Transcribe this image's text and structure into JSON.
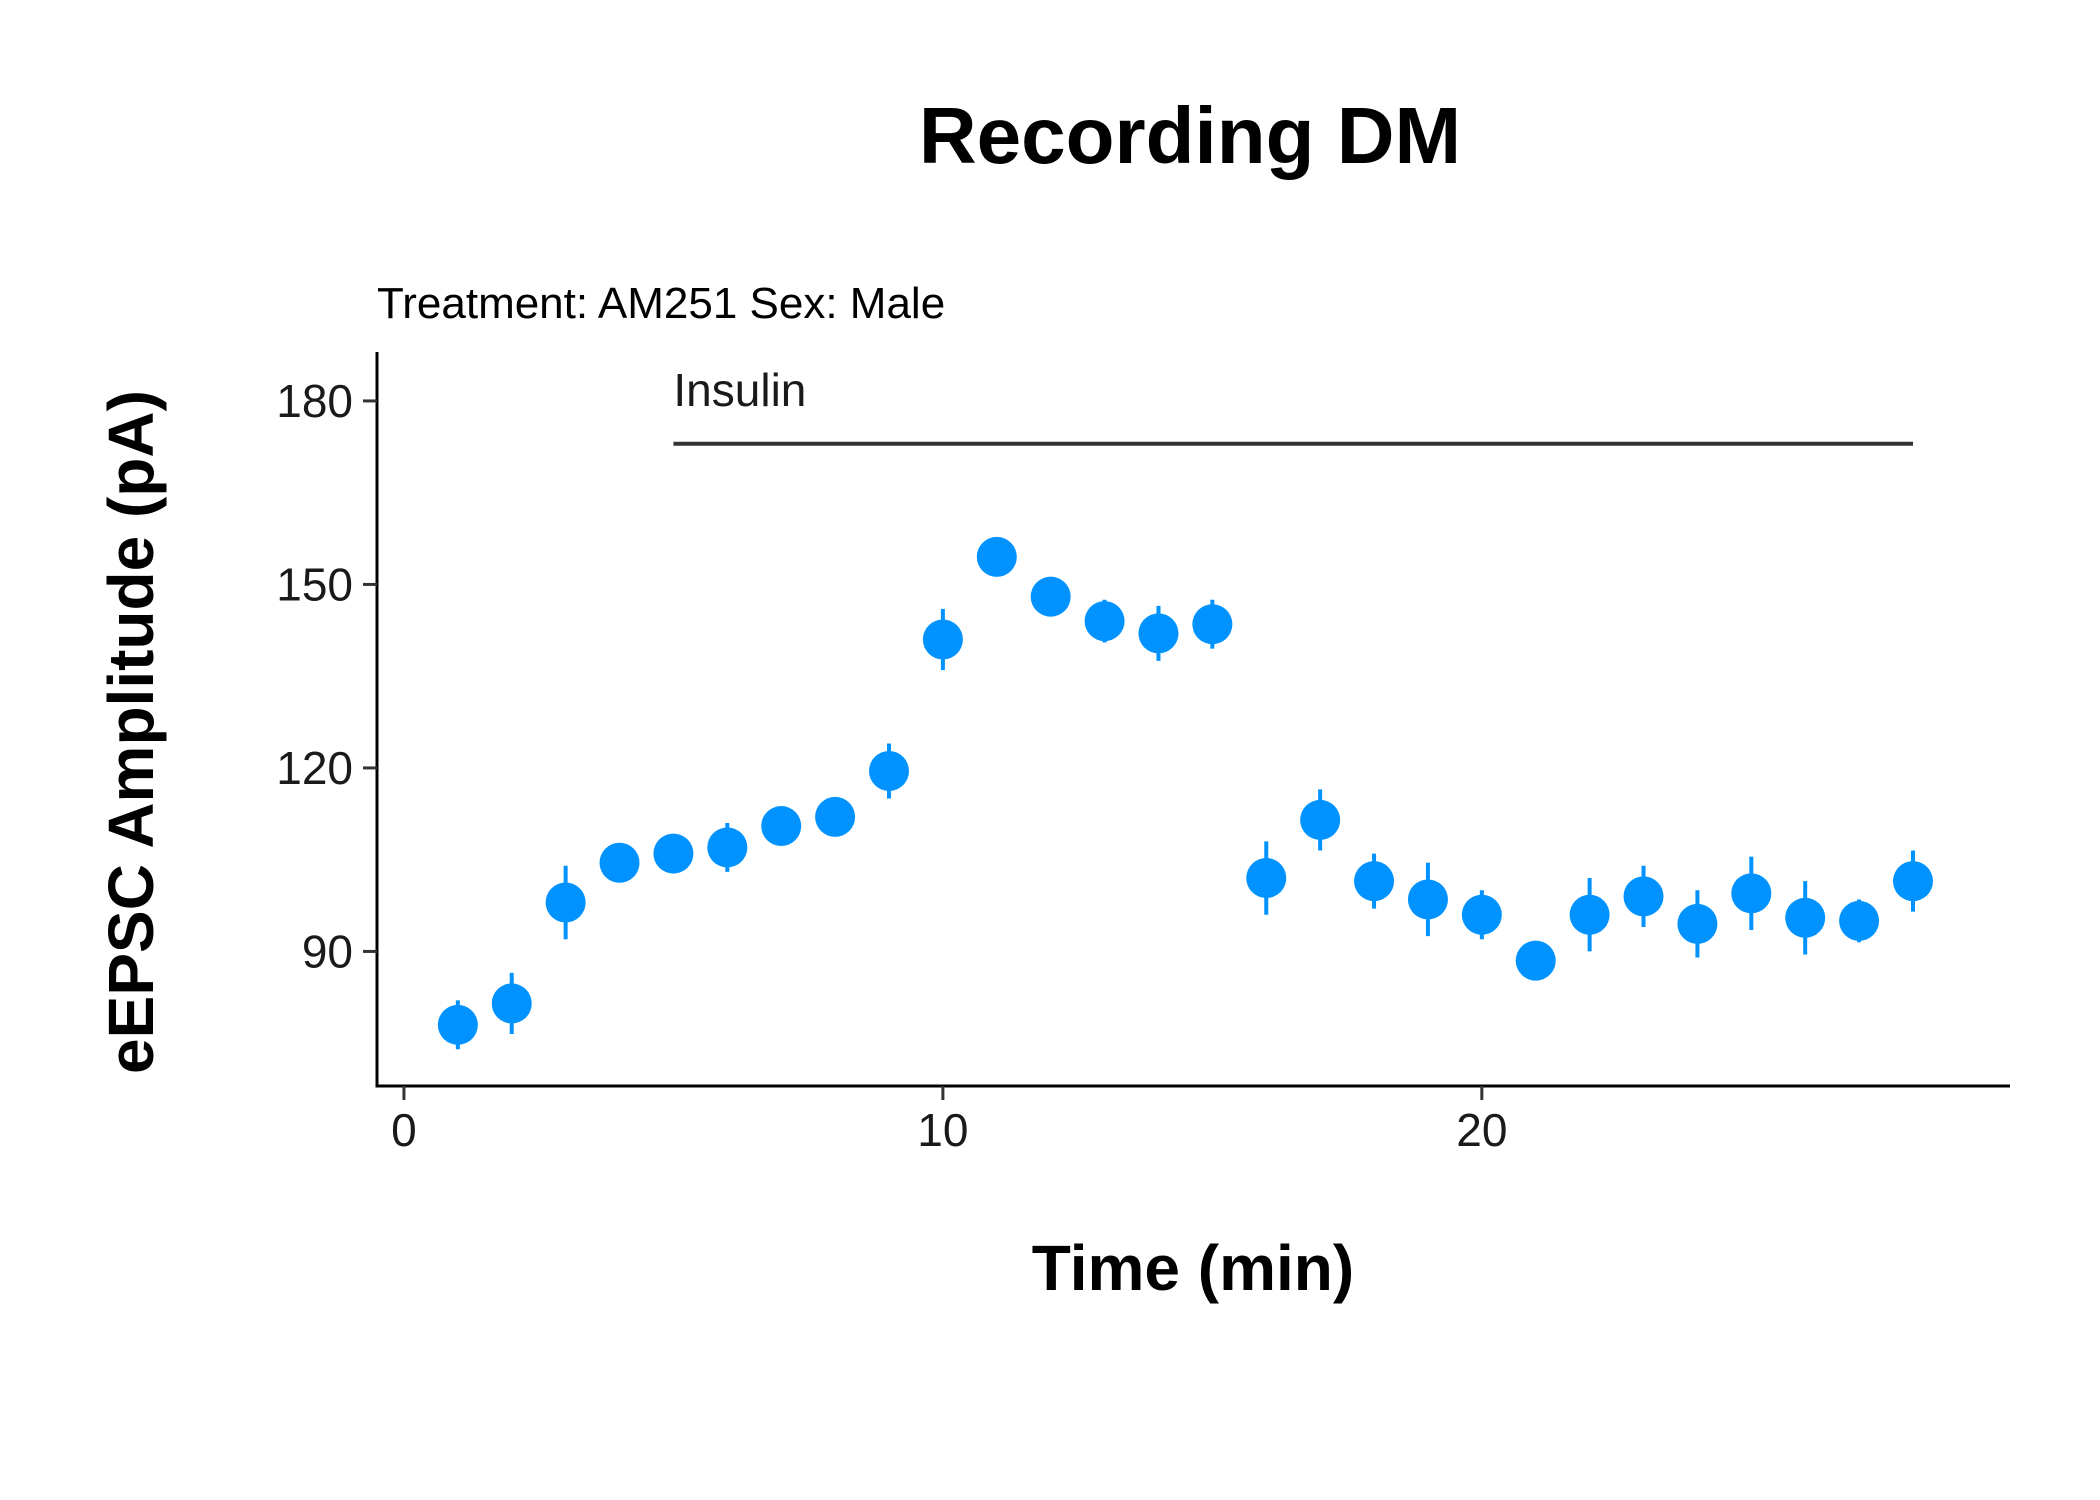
{
  "chart_data": {
    "type": "scatter",
    "title": "Recording DM",
    "subtitle": "Treatment: AM251  Sex: Male",
    "xlabel": "Time (min)",
    "ylabel": "eEPSC Amplitude (pA)",
    "xlim": [
      -0.5,
      29.8
    ],
    "ylim": [
      68,
      188
    ],
    "x_ticks": [
      0,
      10,
      20
    ],
    "y_ticks": [
      90,
      120,
      150,
      180
    ],
    "grid": false,
    "legend": "none",
    "point_color": "#0093FF",
    "annotation": {
      "label": "Insulin",
      "x_start": 5,
      "x_end": 28,
      "y": 173
    },
    "points": [
      {
        "x": 1,
        "y": 78,
        "err": 4
      },
      {
        "x": 2,
        "y": 81.5,
        "err": 5
      },
      {
        "x": 3,
        "y": 98,
        "err": 6
      },
      {
        "x": 4,
        "y": 104.5,
        "err": 2
      },
      {
        "x": 5,
        "y": 106,
        "err": 2
      },
      {
        "x": 6,
        "y": 107,
        "err": 4
      },
      {
        "x": 7,
        "y": 110.5,
        "err": 2
      },
      {
        "x": 8,
        "y": 112,
        "err": 2
      },
      {
        "x": 9,
        "y": 119.5,
        "err": 4.5
      },
      {
        "x": 10,
        "y": 141,
        "err": 5
      },
      {
        "x": 11,
        "y": 154.5,
        "err": 2
      },
      {
        "x": 12,
        "y": 148,
        "err": 2.5
      },
      {
        "x": 13,
        "y": 144,
        "err": 3.5
      },
      {
        "x": 14,
        "y": 142,
        "err": 4.5
      },
      {
        "x": 15,
        "y": 143.5,
        "err": 4
      },
      {
        "x": 16,
        "y": 102,
        "err": 6
      },
      {
        "x": 17,
        "y": 111.5,
        "err": 5
      },
      {
        "x": 18,
        "y": 101.5,
        "err": 4.5
      },
      {
        "x": 19,
        "y": 98.5,
        "err": 6
      },
      {
        "x": 20,
        "y": 96,
        "err": 4
      },
      {
        "x": 21,
        "y": 88.5,
        "err": 2.5
      },
      {
        "x": 22,
        "y": 96,
        "err": 6
      },
      {
        "x": 23,
        "y": 99,
        "err": 5
      },
      {
        "x": 24,
        "y": 94.5,
        "err": 5.5
      },
      {
        "x": 25,
        "y": 99.5,
        "err": 6
      },
      {
        "x": 26,
        "y": 95.5,
        "err": 6
      },
      {
        "x": 27,
        "y": 95,
        "err": 3.5
      },
      {
        "x": 28,
        "y": 101.5,
        "err": 5
      }
    ]
  }
}
